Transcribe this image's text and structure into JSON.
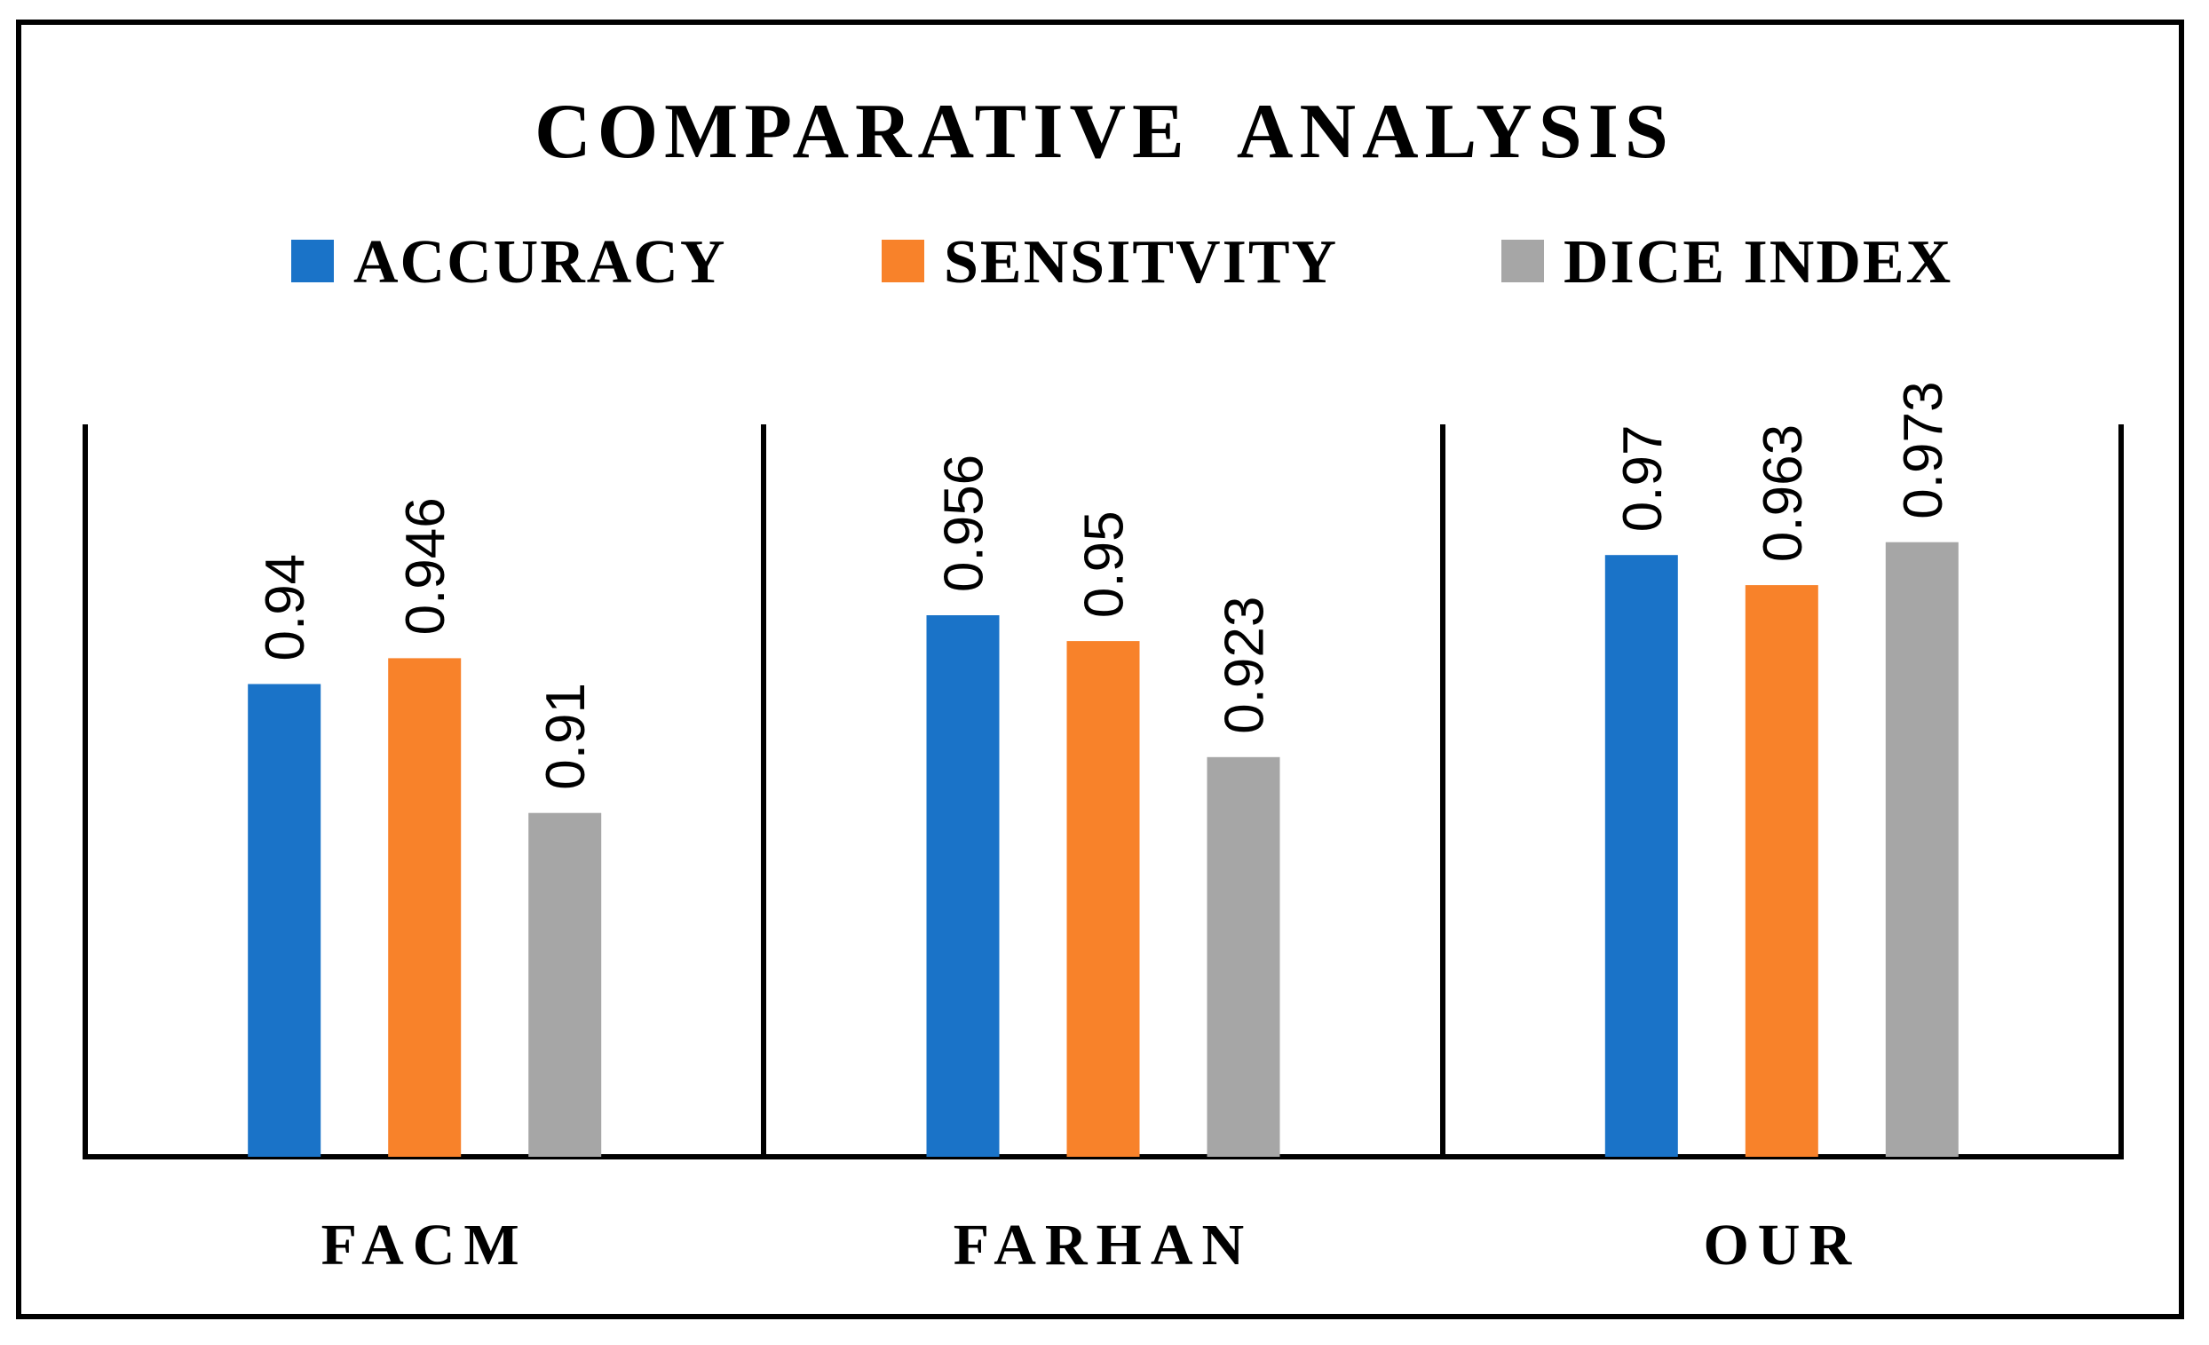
{
  "chart_data": {
    "type": "bar",
    "title": "COMPARATIVE ANALYSIS",
    "categories": [
      "FACM",
      "FARHAN",
      "OUR"
    ],
    "series": [
      {
        "name": "ACCURACY",
        "color": "#1a73c8",
        "values": [
          0.94,
          0.956,
          0.97
        ]
      },
      {
        "name": "SENSITVITY",
        "color": "#f8822a",
        "values": [
          0.946,
          0.95,
          0.963
        ]
      },
      {
        "name": "DICE INDEX",
        "color": "#a6a6a6",
        "values": [
          0.91,
          0.923,
          0.973
        ]
      }
    ],
    "value_labels": [
      [
        "0.94",
        "0.956",
        "0.97"
      ],
      [
        "0.946",
        "0.95",
        "0.963"
      ],
      [
        "0.91",
        "0.923",
        "0.973"
      ]
    ],
    "xlabel": "",
    "ylabel": "",
    "ylim": [
      0.83,
      1.0
    ],
    "grid": false,
    "legend": "top"
  }
}
